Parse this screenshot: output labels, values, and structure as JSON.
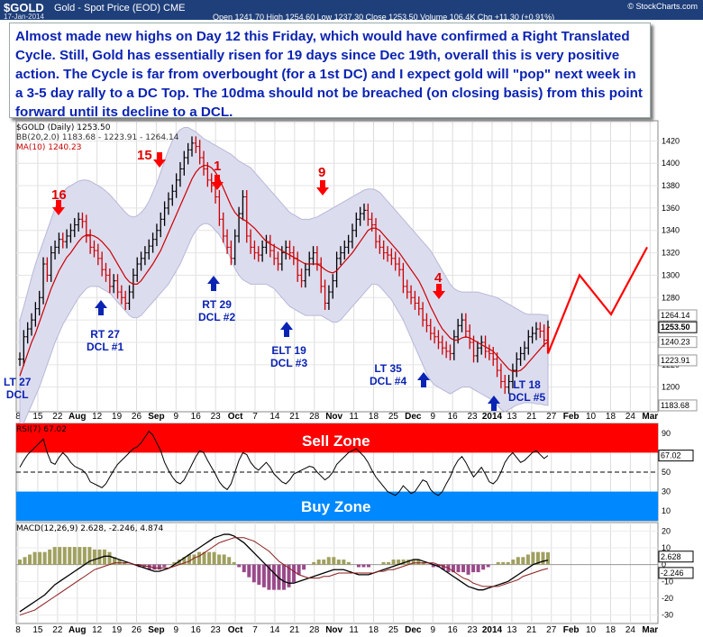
{
  "header": {
    "symbol": "$GOLD",
    "description": "Gold - Spot Price (EOD)  CME",
    "date": "17-Jan-2014",
    "ohlc": "Open 1241.70  High 1254.60  Low 1237.30  Close 1253.50  Volume 106.4K  Chg +11.30 (+0.91%)",
    "source": "© StockCharts.com"
  },
  "annotation_text": "Almost made new highs on Day 12 this Friday, which would have confirmed a Right Translated Cycle.  Still, Gold has essentially risen for 19 days since Dec 19th, overall this is very positive action.  The Cycle is far from overbought (for a 1st DC) and I expect gold will \"pop\" next week in a 3-5 day rally to a DC Top.  The 10dma should not be breached (on closing basis) from this point forward until its decline to a DCL.",
  "legend": {
    "main": "$GOLD (Daily) 1253.50",
    "bb": "BB(20,2.0) 1183.68 - 1223.91 - 1264.14",
    "ma": "MA(10) 1240.23",
    "rsi": "RSI(7) 67.02",
    "macd": "MACD(12,26,9) 2.628, -2.246, 4.874"
  },
  "zones": {
    "sell": "Sell Zone",
    "buy": "Buy Zone"
  },
  "colors": {
    "price_up": "#000000",
    "price_down": "#cc0000",
    "ma": "#cc0000",
    "band": "#dcdcef",
    "sell": "#ff0000",
    "buy": "#0088ff",
    "label": "#0b23b3",
    "arrow_down": "#ff0000",
    "arrow_up": "#0b23b3",
    "header": "#1f3f7a"
  },
  "chart_data": [
    {
      "type": "line",
      "name_hint": "price",
      "ylim": [
        1178,
        1438
      ],
      "y_ticks": [
        1200,
        1220,
        1240,
        1260,
        1280,
        1300,
        1320,
        1340,
        1360,
        1380,
        1400,
        1420
      ],
      "x_ticks": [
        "8",
        "15",
        "22",
        "Aug",
        "12",
        "19",
        "26",
        "Sep",
        "9",
        "16",
        "23",
        "Oct",
        "7",
        "14",
        "21",
        "28",
        "Nov",
        "11",
        "18",
        "25",
        "Dec",
        "9",
        "16",
        "23",
        "2014",
        "13",
        "21",
        "27",
        "Feb",
        "10",
        "18",
        "24",
        "Mar"
      ],
      "price_tags": [
        "1264.14",
        "1253.50",
        "1240.23",
        "1223.91",
        "1183.68"
      ],
      "close": [
        1225,
        1245,
        1252,
        1260,
        1270,
        1280,
        1310,
        1300,
        1320,
        1325,
        1332,
        1330,
        1335,
        1340,
        1345,
        1350,
        1348,
        1335,
        1325,
        1322,
        1315,
        1305,
        1300,
        1290,
        1295,
        1285,
        1280,
        1275,
        1285,
        1300,
        1310,
        1315,
        1320,
        1326,
        1332,
        1340,
        1350,
        1360,
        1368,
        1375,
        1385,
        1395,
        1405,
        1412,
        1418,
        1415,
        1405,
        1395,
        1385,
        1380,
        1370,
        1350,
        1335,
        1325,
        1315,
        1335,
        1355,
        1370,
        1335,
        1325,
        1320,
        1318,
        1325,
        1330,
        1322,
        1315,
        1310,
        1320,
        1325,
        1320,
        1315,
        1300,
        1295,
        1305,
        1315,
        1320,
        1310,
        1290,
        1275,
        1285,
        1295,
        1315,
        1320,
        1325,
        1330,
        1340,
        1350,
        1355,
        1358,
        1350,
        1345,
        1330,
        1325,
        1320,
        1318,
        1315,
        1310,
        1305,
        1290,
        1285,
        1280,
        1275,
        1270,
        1260,
        1255,
        1248,
        1245,
        1240,
        1235,
        1232,
        1230,
        1245,
        1255,
        1260,
        1250,
        1240,
        1228,
        1235,
        1240,
        1232,
        1230,
        1225,
        1215,
        1205,
        1200,
        1205,
        1215,
        1225,
        1230,
        1235,
        1245,
        1248,
        1252,
        1250,
        1242,
        1253.5
      ],
      "ma10": [
        1210,
        1220,
        1230,
        1240,
        1248,
        1258,
        1268,
        1278,
        1288,
        1296,
        1304,
        1310,
        1316,
        1320,
        1325,
        1330,
        1334,
        1336,
        1336,
        1335,
        1333,
        1330,
        1326,
        1322,
        1316,
        1310,
        1304,
        1298,
        1294,
        1292,
        1292,
        1295,
        1300,
        1305,
        1310,
        1316,
        1322,
        1330,
        1338,
        1346,
        1354,
        1362,
        1370,
        1378,
        1386,
        1392,
        1396,
        1398,
        1398,
        1396,
        1392,
        1386,
        1378,
        1370,
        1362,
        1356,
        1352,
        1350,
        1348,
        1345,
        1342,
        1338,
        1334,
        1330,
        1328,
        1326,
        1324,
        1322,
        1320,
        1318,
        1316,
        1314,
        1312,
        1310,
        1310,
        1310,
        1310,
        1308,
        1305,
        1303,
        1302,
        1304,
        1308,
        1312,
        1316,
        1320,
        1325,
        1330,
        1335,
        1340,
        1342,
        1342,
        1340,
        1336,
        1332,
        1328,
        1324,
        1320,
        1315,
        1310,
        1305,
        1300,
        1295,
        1288,
        1280,
        1272,
        1265,
        1258,
        1252,
        1248,
        1244,
        1242,
        1242,
        1244,
        1245,
        1244,
        1242,
        1240,
        1238,
        1236,
        1234,
        1232,
        1228,
        1224,
        1220,
        1216,
        1214,
        1214,
        1215,
        1218,
        1222,
        1226,
        1230,
        1234,
        1238,
        1240.23
      ],
      "bb_upper": [
        1260,
        1272,
        1285,
        1298,
        1310,
        1320,
        1330,
        1340,
        1350,
        1360,
        1368,
        1374,
        1378,
        1380,
        1382,
        1384,
        1385,
        1385,
        1384,
        1382,
        1380,
        1378,
        1375,
        1372,
        1368,
        1364,
        1360,
        1356,
        1353,
        1352,
        1353,
        1356,
        1360,
        1366,
        1374,
        1382,
        1392,
        1402,
        1412,
        1420,
        1426,
        1430,
        1432,
        1432,
        1430,
        1428,
        1425,
        1422,
        1420,
        1418,
        1416,
        1414,
        1412,
        1410,
        1408,
        1405,
        1402,
        1400,
        1398,
        1396,
        1392,
        1388,
        1384,
        1380,
        1376,
        1372,
        1368,
        1364,
        1360,
        1356,
        1354,
        1352,
        1350,
        1350,
        1350,
        1351,
        1352,
        1354,
        1356,
        1358,
        1360,
        1362,
        1364,
        1366,
        1368,
        1370,
        1372,
        1374,
        1376,
        1377,
        1377,
        1376,
        1374,
        1370,
        1366,
        1362,
        1358,
        1354,
        1350,
        1346,
        1342,
        1338,
        1334,
        1330,
        1326,
        1322,
        1316,
        1310,
        1304,
        1298,
        1292,
        1288,
        1286,
        1285,
        1285,
        1285,
        1285,
        1285,
        1284,
        1283,
        1282,
        1281,
        1280,
        1278,
        1276,
        1274,
        1272,
        1270,
        1268,
        1266,
        1265,
        1265,
        1265,
        1265,
        1264.5,
        1264.14
      ],
      "bb_lower": [
        1160,
        1168,
        1176,
        1184,
        1192,
        1200,
        1210,
        1220,
        1230,
        1240,
        1248,
        1256,
        1262,
        1268,
        1274,
        1280,
        1284,
        1288,
        1290,
        1290,
        1290,
        1288,
        1286,
        1284,
        1280,
        1276,
        1272,
        1268,
        1264,
        1262,
        1262,
        1264,
        1268,
        1272,
        1276,
        1280,
        1284,
        1288,
        1292,
        1298,
        1304,
        1310,
        1318,
        1326,
        1334,
        1340,
        1344,
        1346,
        1346,
        1344,
        1340,
        1336,
        1330,
        1322,
        1314,
        1306,
        1300,
        1296,
        1294,
        1292,
        1292,
        1292,
        1292,
        1292,
        1290,
        1288,
        1284,
        1280,
        1276,
        1272,
        1270,
        1268,
        1266,
        1264,
        1264,
        1264,
        1264,
        1264,
        1262,
        1260,
        1258,
        1258,
        1260,
        1264,
        1268,
        1272,
        1276,
        1280,
        1284,
        1288,
        1292,
        1292,
        1290,
        1286,
        1282,
        1278,
        1272,
        1266,
        1260,
        1252,
        1244,
        1236,
        1228,
        1220,
        1212,
        1206,
        1202,
        1200,
        1198,
        1196,
        1194,
        1196,
        1198,
        1200,
        1200,
        1200,
        1198,
        1196,
        1194,
        1192,
        1190,
        1188,
        1184,
        1180,
        1178,
        1180,
        1182,
        1184,
        1185,
        1186,
        1186,
        1186,
        1185,
        1185,
        1184,
        1183.68
      ],
      "projection": [
        [
          1230,
          0
        ],
        [
          1300,
          7
        ],
        [
          1265,
          14
        ],
        [
          1325,
          22
        ]
      ]
    },
    {
      "type": "line",
      "name_hint": "rsi",
      "ylim": [
        0,
        100
      ],
      "y_ticks": [
        10,
        30,
        50,
        70,
        90
      ],
      "bands": {
        "sell": [
          70,
          100
        ],
        "buy": [
          0,
          30
        ]
      },
      "values": [
        55,
        62,
        68,
        72,
        76,
        80,
        84,
        70,
        60,
        58,
        65,
        70,
        66,
        60,
        56,
        54,
        52,
        48,
        40,
        38,
        36,
        34,
        38,
        45,
        52,
        58,
        62,
        66,
        70,
        74,
        76,
        80,
        86,
        92,
        88,
        80,
        72,
        60,
        52,
        45,
        40,
        38,
        42,
        50,
        58,
        66,
        72,
        70,
        62,
        55,
        48,
        40,
        35,
        32,
        38,
        50,
        62,
        70,
        68,
        60,
        55,
        52,
        56,
        60,
        55,
        48,
        44,
        40,
        38,
        42,
        48,
        50,
        52,
        54,
        56,
        55,
        50,
        46,
        42,
        45,
        50,
        58,
        62,
        66,
        70,
        72,
        74,
        70,
        66,
        60,
        52,
        45,
        40,
        35,
        30,
        28,
        26,
        30,
        36,
        32,
        28,
        30,
        36,
        42,
        40,
        32,
        28,
        26,
        30,
        38,
        45,
        55,
        62,
        66,
        60,
        52,
        45,
        50,
        55,
        48,
        40,
        38,
        42,
        50,
        60,
        66,
        70,
        65,
        60,
        62,
        66,
        70,
        72,
        68,
        64,
        67.02
      ]
    },
    {
      "type": "line",
      "name_hint": "macd",
      "ylim": [
        -35,
        25
      ],
      "y_ticks": [
        20,
        10,
        0,
        -10,
        -20,
        -30
      ],
      "macd": [
        -28,
        -26,
        -24,
        -22,
        -20,
        -18,
        -15,
        -12,
        -10,
        -8,
        -6,
        -4,
        -2,
        0,
        2,
        3,
        4,
        5,
        5,
        4,
        3,
        2,
        1,
        0,
        -1,
        -2,
        -3,
        -4,
        -4,
        -3,
        -2,
        0,
        2,
        4,
        6,
        8,
        10,
        12,
        14,
        16,
        17,
        18,
        18,
        17,
        15,
        13,
        10,
        7,
        4,
        1,
        -2,
        -5,
        -8,
        -10,
        -11,
        -11,
        -10,
        -9,
        -8,
        -7,
        -6,
        -5,
        -4,
        -3,
        -3,
        -3,
        -4,
        -5,
        -6,
        -6,
        -6,
        -5,
        -4,
        -3,
        -2,
        -1,
        0,
        1,
        2,
        3,
        3,
        2,
        1,
        0,
        -1,
        -3,
        -5,
        -7,
        -9,
        -11,
        -13,
        -14,
        -15,
        -15,
        -14,
        -13,
        -12,
        -11,
        -10,
        -8,
        -6,
        -4,
        -2,
        0,
        1,
        2,
        2.628
      ],
      "signal": [
        -30,
        -29,
        -28,
        -27,
        -25,
        -23,
        -21,
        -19,
        -17,
        -15,
        -13,
        -11,
        -9,
        -7,
        -5,
        -3,
        -2,
        -1,
        0,
        1,
        1,
        1,
        1,
        0,
        0,
        -1,
        -1,
        -2,
        -2,
        -2,
        -2,
        -1,
        0,
        1,
        2,
        4,
        5,
        7,
        9,
        11,
        13,
        14,
        15,
        16,
        16,
        16,
        15,
        14,
        12,
        10,
        8,
        5,
        2,
        0,
        -2,
        -4,
        -6,
        -7,
        -8,
        -8,
        -8,
        -7,
        -7,
        -6,
        -5,
        -5,
        -5,
        -5,
        -5,
        -5,
        -5,
        -5,
        -4,
        -4,
        -3,
        -3,
        -2,
        -1,
        0,
        1,
        1,
        1,
        1,
        1,
        0,
        -1,
        -2,
        -4,
        -6,
        -8,
        -9,
        -11,
        -12,
        -13,
        -13,
        -13,
        -13,
        -12,
        -11,
        -10,
        -9,
        -7,
        -6,
        -5,
        -4,
        -3,
        -2.246
      ]
    }
  ],
  "cycle_labels": [
    {
      "text": "LT 27",
      "sub": "DCL"
    },
    {
      "text": "RT 27",
      "sub": "DCL #1"
    },
    {
      "text": "RT 29",
      "sub": "DCL #2"
    },
    {
      "text": "ELT 19",
      "sub": "DCL #3"
    },
    {
      "text": "LT 35",
      "sub": "DCL #4"
    },
    {
      "text": "LT 18",
      "sub": "DCL #5"
    }
  ],
  "top_labels": [
    "16",
    "15",
    "1",
    "9",
    "4"
  ],
  "macd_tags": [
    "2.628",
    "-2.246"
  ],
  "rsi_tag": "67.02"
}
